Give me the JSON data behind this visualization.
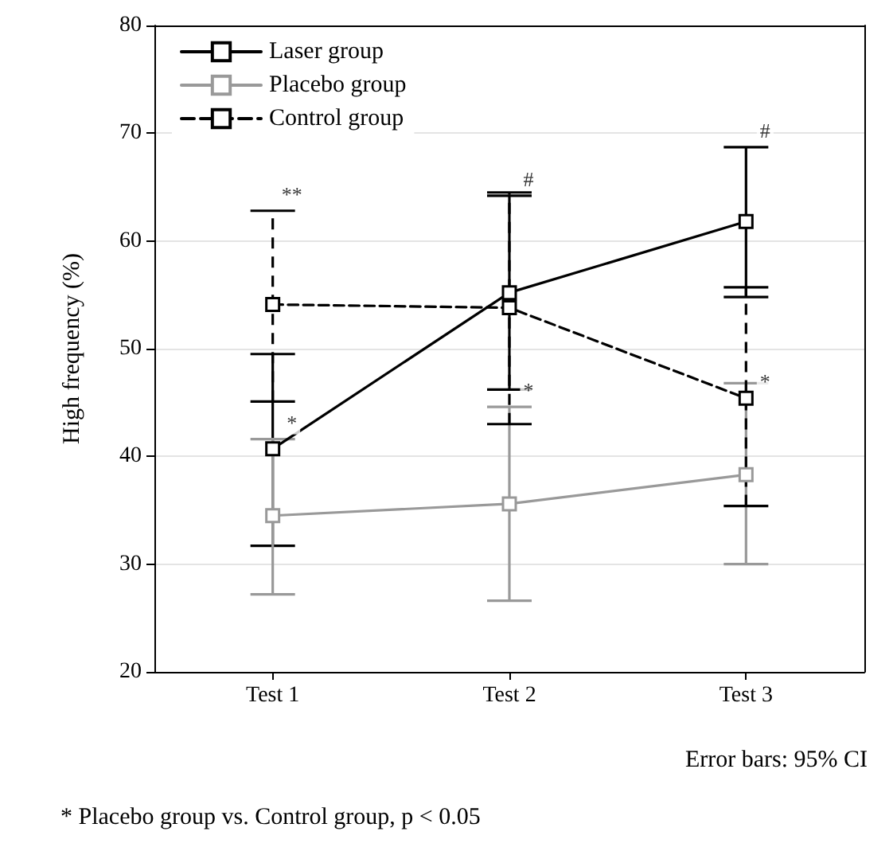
{
  "chart_data": {
    "type": "line",
    "categories": [
      "Test 1",
      "Test 2",
      "Test 3"
    ],
    "ylabel": "High frequency (%)",
    "ylim": [
      20,
      80
    ],
    "yticks": [
      20,
      30,
      40,
      50,
      60,
      70,
      80
    ],
    "grid": "y",
    "legend": "top left",
    "marker": "square",
    "series": [
      {
        "name": "Laser group",
        "color": "#000000",
        "line_style": "solid",
        "values": [
          40.7,
          55.2,
          61.8
        ],
        "errors": [
          [
            31.7,
            49.5
          ],
          [
            46.2,
            64.2
          ],
          [
            54.8,
            68.7
          ]
        ]
      },
      {
        "name": "Placebo group",
        "color": "#999999",
        "line_style": "solid",
        "values": [
          34.5,
          35.6,
          38.3
        ],
        "errors": [
          [
            27.2,
            41.6
          ],
          [
            26.6,
            44.6
          ],
          [
            30.0,
            46.8
          ]
        ]
      },
      {
        "name": "Control group",
        "color": "#000000",
        "line_style": "dashed",
        "values": [
          54.1,
          53.8,
          45.4
        ],
        "errors": [
          [
            45.1,
            62.8
          ],
          [
            43.0,
            64.5
          ],
          [
            35.4,
            55.7
          ]
        ]
      }
    ],
    "annotations": [
      {
        "text": "**",
        "x": "Test 1",
        "y": 62.8
      },
      {
        "text": "#",
        "x": "Test 2",
        "y": 64.2
      },
      {
        "text": "#",
        "x": "Test 3",
        "y": 68.7
      },
      {
        "text": "*",
        "x": "Test 1",
        "y": 41.6
      },
      {
        "text": "*",
        "x": "Test 2",
        "y": 44.6
      },
      {
        "text": "*",
        "x": "Test 3",
        "y": 45.4
      },
      "Error bars: 95% CI",
      "* Placebo group vs. Control group, p < 0.05"
    ]
  }
}
